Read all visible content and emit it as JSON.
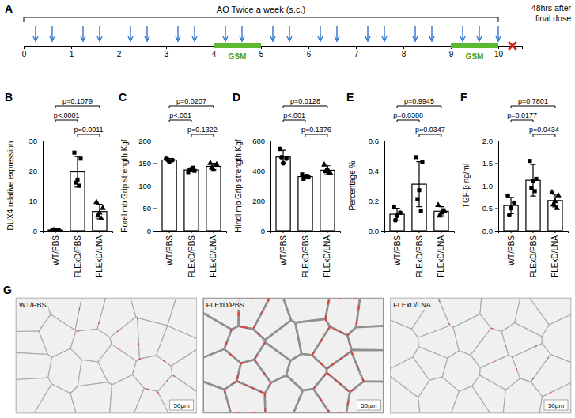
{
  "timeline": {
    "label": "A",
    "title": "AO Twice a week (s.c.)",
    "note": "48hrs after final dose",
    "xlim": [
      0,
      10.5
    ],
    "xticks": [
      0,
      1,
      2,
      3,
      4,
      5,
      6,
      7,
      8,
      9,
      10
    ],
    "doses": [
      0.25,
      0.6,
      1.25,
      1.6,
      2.25,
      2.6,
      3.25,
      3.6,
      4.25,
      4.6,
      5.25,
      5.6,
      6.25,
      6.6,
      7.25,
      7.6,
      8.25,
      8.6,
      9.25,
      9.6,
      10.0
    ],
    "periods": [
      {
        "label": "GSM",
        "start": 4,
        "end": 5
      },
      {
        "label": "GSM",
        "start": 9,
        "end": 10
      }
    ],
    "sacrifice": 10.3
  },
  "chart_data": [
    {
      "label": "B",
      "type": "bar",
      "categories": [
        "WT/PBS",
        "FLExD/PBS",
        "FLExD/LNA"
      ],
      "ylabel": "DUX4 relative expression",
      "ylim": [
        0,
        30
      ],
      "yticks": [
        0,
        10,
        20,
        30
      ],
      "values": [
        0.26,
        19.6,
        6.4
      ],
      "errors": [
        0.1,
        5.1,
        2.4
      ],
      "points": [
        [
          0.15,
          0.25,
          0.3,
          0.4,
          0.2
        ],
        [
          26,
          24,
          17,
          16,
          15
        ],
        [
          9.5,
          7.5,
          6,
          5,
          4
        ]
      ],
      "comparisons": [
        {
          "groups": [
            0,
            2
          ],
          "label": "p=0.1079"
        },
        {
          "groups": [
            0,
            1
          ],
          "label": "p<.0001"
        },
        {
          "groups": [
            1,
            2
          ],
          "label": "p=0.0011"
        }
      ]
    },
    {
      "label": "C",
      "type": "bar",
      "categories": [
        "WT/PBS",
        "FLExD/PBS",
        "FLExD/LNA"
      ],
      "ylabel": "Forelimb Grip strength Kgf",
      "ylim": [
        0,
        200
      ],
      "yticks": [
        0,
        50,
        100,
        150,
        200
      ],
      "values": [
        157,
        135,
        143
      ],
      "errors": [
        3.5,
        4,
        7
      ],
      "points": [
        [
          160,
          157,
          153,
          158
        ],
        [
          130,
          133,
          137,
          135,
          140
        ],
        [
          150,
          147,
          135,
          140
        ]
      ],
      "comparisons": [
        {
          "groups": [
            0,
            2
          ],
          "label": "p=0.0207"
        },
        {
          "groups": [
            0,
            1
          ],
          "label": "p<.001"
        },
        {
          "groups": [
            1,
            2
          ],
          "label": "p=0.1322"
        }
      ]
    },
    {
      "label": "D",
      "type": "bar",
      "categories": [
        "WT/PBS",
        "FLExD/PBS",
        "FLExD/LNA"
      ],
      "ylabel": "Hindlimb Grip strength Kgf",
      "ylim": [
        0,
        600
      ],
      "yticks": [
        0,
        200,
        400,
        600
      ],
      "values": [
        491,
        360,
        403
      ],
      "errors": [
        45,
        12,
        30
      ],
      "points": [
        [
          545,
          480,
          450,
          490
        ],
        [
          375,
          355,
          360,
          345,
          365
        ],
        [
          440,
          380,
          410,
          395,
          390
        ]
      ],
      "comparisons": [
        {
          "groups": [
            0,
            2
          ],
          "label": "p=0.0128"
        },
        {
          "groups": [
            0,
            1
          ],
          "label": "p<.001"
        },
        {
          "groups": [
            1,
            2
          ],
          "label": "p=0.1376"
        }
      ]
    },
    {
      "label": "E",
      "type": "bar",
      "categories": [
        "WT/PBS",
        "FLExD/PBS",
        "FLExD/LNA"
      ],
      "ylabel": "Percentage %",
      "ylim": [
        0,
        0.6
      ],
      "yticks": [
        {
          "value": 0,
          "label": "0.0"
        },
        0.2,
        0.4,
        0.6
      ],
      "values": [
        0.11,
        0.31,
        0.13
      ],
      "errors": [
        0.04,
        0.15,
        0.03
      ],
      "points": [
        [
          0.16,
          0.12,
          0.1,
          0.07
        ],
        [
          0.49,
          0.46,
          0.27,
          0.21,
          0.13
        ],
        [
          0.17,
          0.13,
          0.12,
          0.1,
          0.13
        ]
      ],
      "comparisons": [
        {
          "groups": [
            0,
            2
          ],
          "label": "p=0.9945"
        },
        {
          "groups": [
            0,
            1
          ],
          "label": "p=0.0388"
        },
        {
          "groups": [
            1,
            2
          ],
          "label": "p=0.0347"
        }
      ]
    },
    {
      "label": "F",
      "type": "bar",
      "categories": [
        "WT/PBS",
        "FLExD/PBS",
        "FLExD/LNA"
      ],
      "ylabel": "TGF-β ng/ml",
      "ylim": [
        0,
        2
      ],
      "yticks": [
        {
          "value": 0,
          "label": "0.0"
        },
        0.5,
        {
          "value": 1,
          "label": "1.0"
        },
        1.5,
        {
          "value": 2,
          "label": "2.0"
        }
      ],
      "values": [
        0.56,
        1.12,
        0.67
      ],
      "errors": [
        0.18,
        0.35,
        0.14
      ],
      "points": [
        [
          0.78,
          0.62,
          0.5,
          0.35
        ],
        [
          1.55,
          1.15,
          1.1,
          0.95,
          0.88
        ],
        [
          0.85,
          0.78,
          0.65,
          0.58,
          0.5
        ]
      ],
      "comparisons": [
        {
          "groups": [
            0,
            2
          ],
          "label": "p=0.7801"
        },
        {
          "groups": [
            0,
            1
          ],
          "label": "p=0.0177"
        },
        {
          "groups": [
            1,
            2
          ],
          "label": "p=0.0434"
        }
      ]
    }
  ],
  "histology": {
    "label": "G",
    "panels": [
      {
        "title": "WT/PBS",
        "scale_bar": "50µm"
      },
      {
        "title": "FLExD/PBS",
        "scale_bar": "50µm"
      },
      {
        "title": "FLExD/LNA",
        "scale_bar": "50µm"
      }
    ]
  }
}
